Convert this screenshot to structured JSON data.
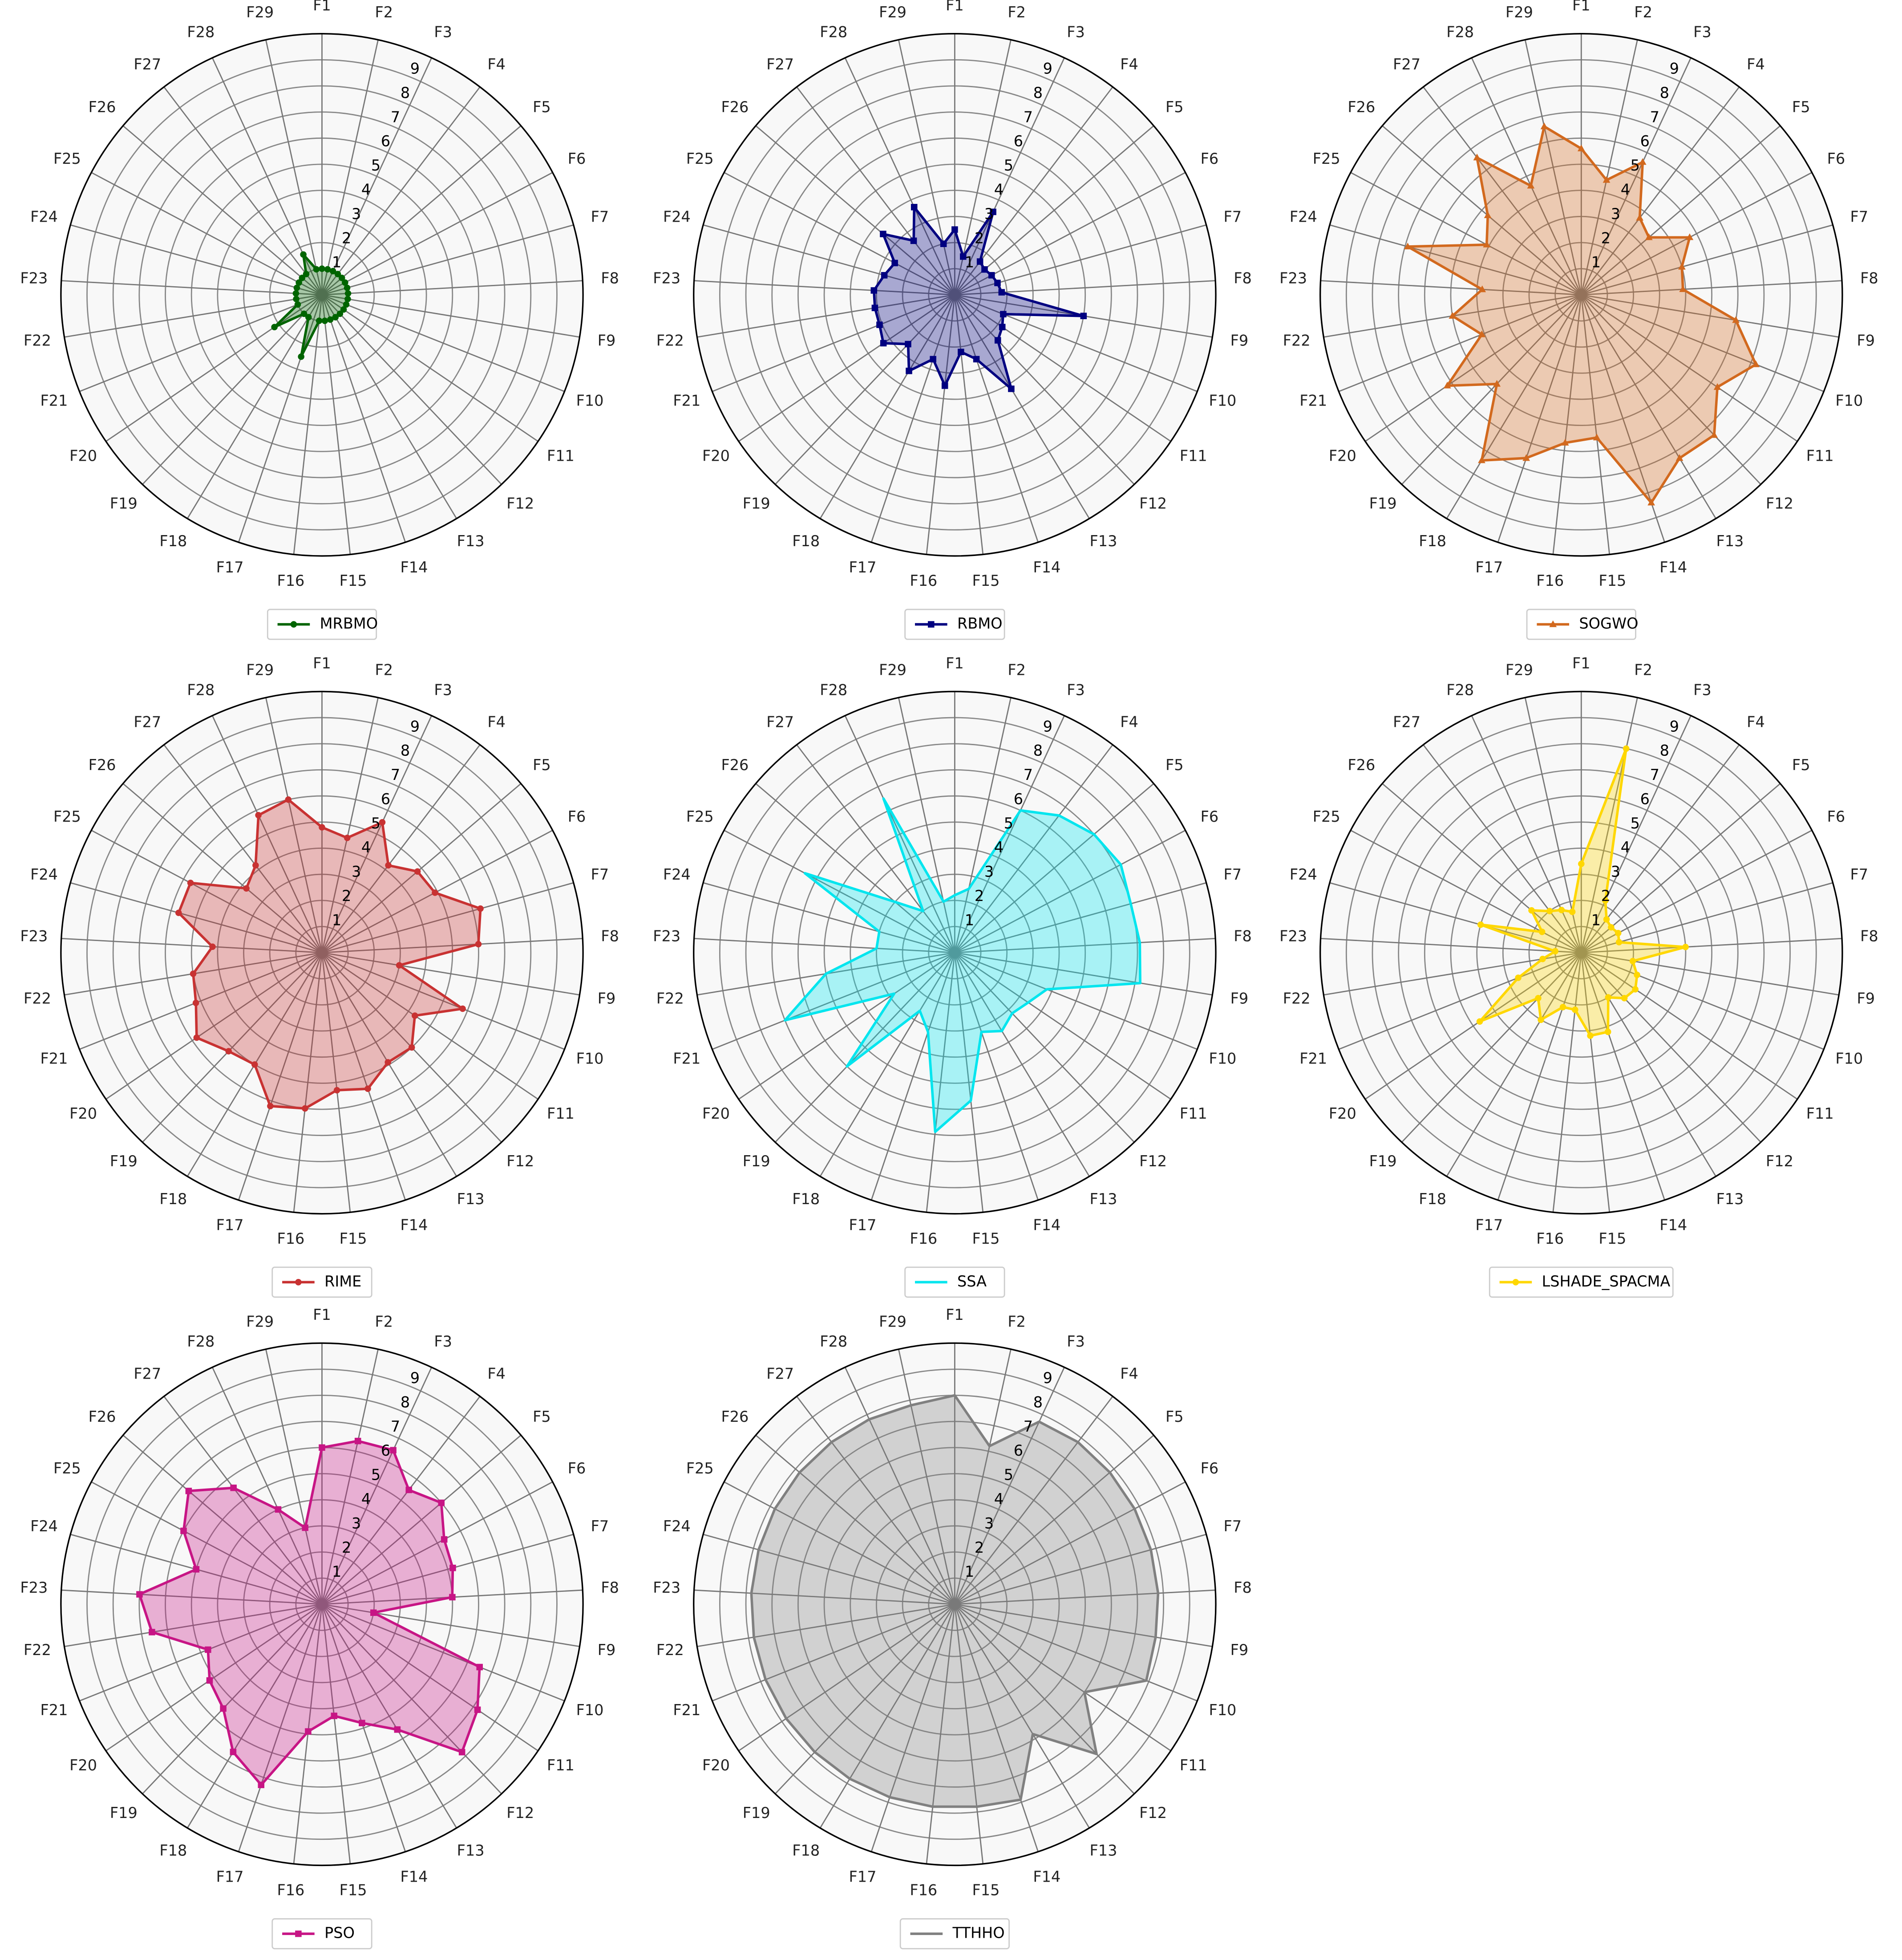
{
  "chart_data": [
    {
      "type": "radar",
      "categories": [
        "F1",
        "F2",
        "F3",
        "F4",
        "F5",
        "F6",
        "F7",
        "F8",
        "F9",
        "F10",
        "F11",
        "F12",
        "F13",
        "F14",
        "F15",
        "F16",
        "F17",
        "F18",
        "F19",
        "F20",
        "F21",
        "F22",
        "F23",
        "F24",
        "F25",
        "F26",
        "F27",
        "F28",
        "F29"
      ],
      "rlim": [
        0,
        10
      ],
      "rticks": [
        1,
        2,
        3,
        4,
        5,
        6,
        7,
        8,
        9
      ],
      "marker": "circle",
      "series": [
        {
          "name": "MRBMO",
          "color": "#006400",
          "values": [
            1,
            1,
            1,
            1,
            1,
            1,
            1,
            1,
            1,
            1,
            1,
            1,
            1,
            1,
            1,
            1,
            2.5,
            1,
            1,
            2.2,
            1,
            1,
            1,
            1,
            1,
            1,
            1,
            1.7,
            1
          ]
        }
      ]
    },
    {
      "type": "radar",
      "categories": [
        "F1",
        "F2",
        "F3",
        "F4",
        "F5",
        "F6",
        "F7",
        "F8",
        "F9",
        "F10",
        "F11",
        "F12",
        "F13",
        "F14",
        "F15",
        "F16",
        "F17",
        "F18",
        "F19",
        "F20",
        "F21",
        "F22",
        "F23",
        "F24",
        "F25",
        "F26",
        "F27",
        "F28",
        "F29"
      ],
      "rlim": [
        0,
        10
      ],
      "rticks": [
        1,
        2,
        3,
        4,
        5,
        6,
        7,
        8,
        9
      ],
      "marker": "square",
      "series": [
        {
          "name": "RBMO",
          "color": "#000080",
          "values": [
            2.5,
            1.5,
            3.5,
            1.6,
            1.5,
            1.6,
            1.7,
            1.8,
            5.0,
            2.0,
            2.2,
            2.4,
            4.2,
            2.6,
            2.2,
            3.5,
            2.6,
            3.4,
            2.6,
            3.3,
            3.1,
            3.1,
            3.1,
            2.8,
            2.6,
            3.6,
            2.6,
            3.7,
            2.0
          ]
        }
      ]
    },
    {
      "type": "radar",
      "categories": [
        "F1",
        "F2",
        "F3",
        "F4",
        "F5",
        "F6",
        "F7",
        "F8",
        "F9",
        "F10",
        "F11",
        "F12",
        "F13",
        "F14",
        "F15",
        "F16",
        "F17",
        "F18",
        "F19",
        "F20",
        "F21",
        "F22",
        "F23",
        "F24",
        "F25",
        "F26",
        "F27",
        "F28",
        "F29"
      ],
      "rlim": [
        0,
        10
      ],
      "rticks": [
        1,
        2,
        3,
        4,
        5,
        6,
        7,
        8,
        9
      ],
      "marker": "triangle",
      "series": [
        {
          "name": "SOGWO",
          "color": "#d2691e",
          "values": [
            5.6,
            4.5,
            5.6,
            3.7,
            3.4,
            4.7,
            4.0,
            3.9,
            6.0,
            7.2,
            6.3,
            7.4,
            7.3,
            8.4,
            5.5,
            5.7,
            6.6,
            7.4,
            4.7,
            6.2,
            4.1,
            5.0,
            3.8,
            6.9,
            4.1,
            4.7,
            6.6,
            4.6,
            6.6
          ]
        }
      ]
    },
    {
      "type": "radar",
      "categories": [
        "F1",
        "F2",
        "F3",
        "F4",
        "F5",
        "F6",
        "F7",
        "F8",
        "F9",
        "F10",
        "F11",
        "F12",
        "F13",
        "F14",
        "F15",
        "F16",
        "F17",
        "F18",
        "F19",
        "F20",
        "F21",
        "F22",
        "F23",
        "F24",
        "F25",
        "F26",
        "F27",
        "F28",
        "F29"
      ],
      "rlim": [
        0,
        10
      ],
      "rticks": [
        1,
        2,
        3,
        4,
        5,
        6,
        7,
        8,
        9
      ],
      "marker": "circle",
      "series": [
        {
          "name": "RIME",
          "color": "#c83232",
          "values": [
            4.8,
            4.5,
            5.5,
            4.2,
            4.8,
            4.9,
            6.3,
            6.0,
            3.0,
            5.8,
            4.3,
            5.0,
            4.9,
            5.5,
            5.3,
            6.0,
            6.2,
            5.0,
            5.2,
            5.8,
            5.2,
            5.0,
            4.2,
            5.7,
            5.7,
            3.8,
            4.2,
            5.8,
            6.0
          ]
        }
      ]
    },
    {
      "type": "radar",
      "categories": [
        "F1",
        "F2",
        "F3",
        "F4",
        "F5",
        "F6",
        "F7",
        "F8",
        "F9",
        "F10",
        "F11",
        "F12",
        "F13",
        "F14",
        "F15",
        "F16",
        "F17",
        "F18",
        "F19",
        "F20",
        "F21",
        "F22",
        "F23",
        "F24",
        "F25",
        "F26",
        "F27",
        "F28",
        "F29"
      ],
      "rlim": [
        0,
        10
      ],
      "rticks": [
        1,
        2,
        3,
        4,
        5,
        6,
        7,
        8,
        9
      ],
      "marker": "none",
      "series": [
        {
          "name": "SSA",
          "color": "#00e5ee",
          "values": [
            2.2,
            2.5,
            6.0,
            6.6,
            7.0,
            7.2,
            7.0,
            7.1,
            7.2,
            3.8,
            3.4,
            3.2,
            3.5,
            3.2,
            5.7,
            6.9,
            3.2,
            2.6,
            6.0,
            2.8,
            7.0,
            5.0,
            3.0,
            3.0,
            6.5,
            3.0,
            2.0,
            6.5,
            2.0
          ]
        }
      ]
    },
    {
      "type": "radar",
      "categories": [
        "F1",
        "F2",
        "F3",
        "F4",
        "F5",
        "F6",
        "F7",
        "F8",
        "F9",
        "F10",
        "F11",
        "F12",
        "F13",
        "F14",
        "F15",
        "F16",
        "F17",
        "F18",
        "F19",
        "F20",
        "F21",
        "F22",
        "F23",
        "F24",
        "F25",
        "F26",
        "F27",
        "F28",
        "F29"
      ],
      "rlim": [
        0,
        10
      ],
      "rticks": [
        1,
        2,
        3,
        4,
        5,
        6,
        7,
        8,
        9
      ],
      "marker": "circle",
      "series": [
        {
          "name": "LSHADE_SPACMA",
          "color": "#ffd700",
          "values": [
            3.4,
            8.0,
            2.2,
            1.6,
            1.5,
            1.6,
            1.5,
            4.0,
            2.0,
            2.3,
            2.5,
            2.4,
            2.0,
            3.2,
            3.2,
            2.2,
            2.2,
            3.0,
            2.4,
            4.7,
            2.6,
            1.5,
            1.0,
            4.0,
            1.7,
            2.5,
            2.0,
            1.8,
            1.6
          ]
        }
      ]
    },
    {
      "type": "radar",
      "categories": [
        "F1",
        "F2",
        "F3",
        "F4",
        "F5",
        "F6",
        "F7",
        "F8",
        "F9",
        "F10",
        "F11",
        "F12",
        "F13",
        "F14",
        "F15",
        "F16",
        "F17",
        "F18",
        "F19",
        "F20",
        "F21",
        "F22",
        "F23",
        "F24",
        "F25",
        "F26",
        "F27",
        "F28",
        "F29"
      ],
      "rlim": [
        0,
        10
      ],
      "rticks": [
        1,
        2,
        3,
        4,
        5,
        6,
        7,
        8,
        9
      ],
      "marker": "square",
      "series": [
        {
          "name": "PSO",
          "color": "#c71585",
          "values": [
            6.0,
            6.4,
            6.5,
            5.5,
            6.0,
            5.3,
            5.2,
            5.0,
            2.0,
            6.5,
            7.2,
            7.8,
            5.6,
            4.8,
            4.3,
            4.9,
            7.3,
            6.6,
            5.5,
            5.2,
            4.7,
            6.6,
            7.0,
            5.0,
            6.0,
            6.7,
            5.6,
            4.0,
            3.0
          ]
        }
      ]
    },
    {
      "type": "radar",
      "categories": [
        "F1",
        "F2",
        "F3",
        "F4",
        "F5",
        "F6",
        "F7",
        "F8",
        "F9",
        "F10",
        "F11",
        "F12",
        "F13",
        "F14",
        "F15",
        "F16",
        "F17",
        "F18",
        "F19",
        "F20",
        "F21",
        "F22",
        "F23",
        "F24",
        "F25",
        "F26",
        "F27",
        "F28",
        "F29"
      ],
      "rlim": [
        0,
        10
      ],
      "rticks": [
        1,
        2,
        3,
        4,
        5,
        6,
        7,
        8,
        9
      ],
      "marker": "none",
      "series": [
        {
          "name": "TTHHO",
          "color": "#808080",
          "values": [
            8.0,
            6.2,
            7.7,
            7.8,
            7.8,
            7.8,
            7.8,
            7.8,
            7.8,
            7.9,
            6.0,
            7.9,
            5.8,
            7.9,
            7.8,
            7.8,
            7.8,
            7.8,
            7.8,
            7.8,
            7.8,
            7.8,
            7.8,
            7.8,
            7.8,
            7.8,
            7.8,
            7.8,
            7.8
          ]
        }
      ]
    }
  ]
}
